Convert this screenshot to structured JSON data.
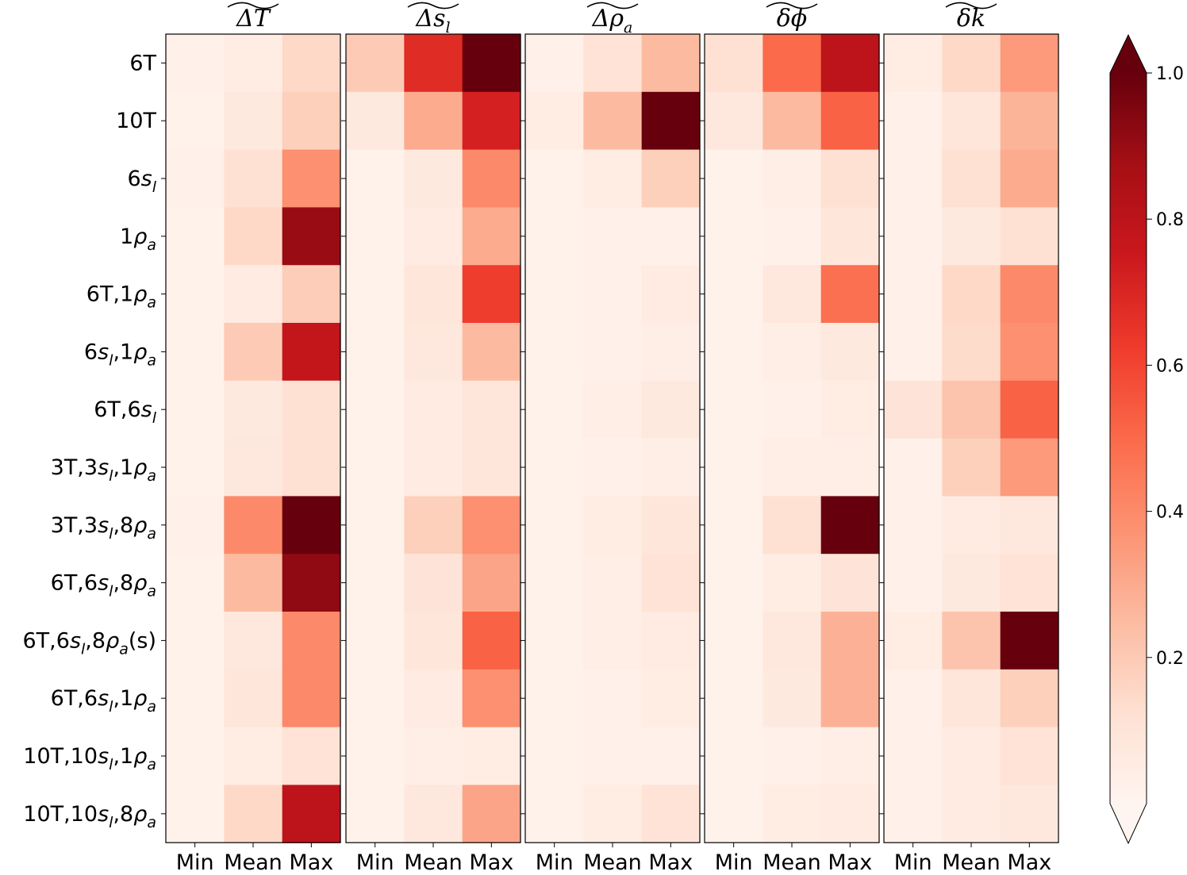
{
  "chart_data": {
    "type": "heatmap",
    "panels": [
      {
        "title": "ΔT",
        "columns": [
          "Min",
          "Mean",
          "Max"
        ],
        "values": [
          [
            0.03,
            0.05,
            0.15
          ],
          [
            0.02,
            0.07,
            0.18
          ],
          [
            0.03,
            0.12,
            0.38
          ],
          [
            0.02,
            0.15,
            0.9
          ],
          [
            0.02,
            0.06,
            0.19
          ],
          [
            0.02,
            0.2,
            0.78
          ],
          [
            0.02,
            0.07,
            0.12
          ],
          [
            0.02,
            0.08,
            0.12
          ],
          [
            0.03,
            0.4,
            1.0
          ],
          [
            0.02,
            0.25,
            0.92
          ],
          [
            0.02,
            0.08,
            0.4
          ],
          [
            0.02,
            0.09,
            0.4
          ],
          [
            0.02,
            0.05,
            0.11
          ],
          [
            0.02,
            0.15,
            0.8
          ]
        ]
      },
      {
        "title": "Δs_l",
        "columns": [
          "Min",
          "Mean",
          "Max"
        ],
        "values": [
          [
            0.2,
            0.68,
            1.0
          ],
          [
            0.07,
            0.3,
            0.72
          ],
          [
            0.02,
            0.07,
            0.4
          ],
          [
            0.02,
            0.06,
            0.3
          ],
          [
            0.02,
            0.09,
            0.62
          ],
          [
            0.02,
            0.08,
            0.25
          ],
          [
            0.02,
            0.06,
            0.09
          ],
          [
            0.02,
            0.06,
            0.09
          ],
          [
            0.02,
            0.18,
            0.38
          ],
          [
            0.02,
            0.1,
            0.32
          ],
          [
            0.02,
            0.09,
            0.52
          ],
          [
            0.02,
            0.06,
            0.38
          ],
          [
            0.02,
            0.04,
            0.05
          ],
          [
            0.02,
            0.08,
            0.32
          ]
        ]
      },
      {
        "title": "Δρ_a",
        "columns": [
          "Min",
          "Mean",
          "Max"
        ],
        "values": [
          [
            0.03,
            0.11,
            0.25
          ],
          [
            0.05,
            0.25,
            1.0
          ],
          [
            0.02,
            0.05,
            0.18
          ],
          [
            0.02,
            0.03,
            0.03
          ],
          [
            0.02,
            0.03,
            0.06
          ],
          [
            0.02,
            0.03,
            0.04
          ],
          [
            0.02,
            0.04,
            0.07
          ],
          [
            0.02,
            0.03,
            0.04
          ],
          [
            0.02,
            0.05,
            0.09
          ],
          [
            0.02,
            0.04,
            0.11
          ],
          [
            0.02,
            0.04,
            0.06
          ],
          [
            0.02,
            0.03,
            0.05
          ],
          [
            0.02,
            0.03,
            0.03
          ],
          [
            0.02,
            0.05,
            0.11
          ]
        ]
      },
      {
        "title": "δϕ",
        "columns": [
          "Min",
          "Mean",
          "Max"
        ],
        "values": [
          [
            0.12,
            0.5,
            0.8
          ],
          [
            0.08,
            0.25,
            0.52
          ],
          [
            0.02,
            0.04,
            0.12
          ],
          [
            0.02,
            0.03,
            0.09
          ],
          [
            0.02,
            0.08,
            0.48
          ],
          [
            0.02,
            0.04,
            0.07
          ],
          [
            0.02,
            0.03,
            0.05
          ],
          [
            0.02,
            0.04,
            0.04
          ],
          [
            0.02,
            0.12,
            1.0
          ],
          [
            0.02,
            0.05,
            0.1
          ],
          [
            0.02,
            0.08,
            0.28
          ],
          [
            0.02,
            0.07,
            0.28
          ],
          [
            0.02,
            0.03,
            0.04
          ],
          [
            0.02,
            0.05,
            0.06
          ]
        ]
      },
      {
        "title": "δk",
        "columns": [
          "Min",
          "Mean",
          "Max"
        ],
        "values": [
          [
            0.05,
            0.15,
            0.35
          ],
          [
            0.03,
            0.09,
            0.27
          ],
          [
            0.03,
            0.12,
            0.3
          ],
          [
            0.03,
            0.07,
            0.12
          ],
          [
            0.03,
            0.15,
            0.4
          ],
          [
            0.03,
            0.14,
            0.38
          ],
          [
            0.1,
            0.22,
            0.52
          ],
          [
            0.03,
            0.18,
            0.35
          ],
          [
            0.03,
            0.06,
            0.08
          ],
          [
            0.03,
            0.07,
            0.11
          ],
          [
            0.05,
            0.22,
            1.0
          ],
          [
            0.03,
            0.09,
            0.18
          ],
          [
            0.03,
            0.06,
            0.11
          ],
          [
            0.03,
            0.06,
            0.08
          ]
        ]
      }
    ],
    "row_labels": [
      "6T",
      "10T",
      "6s_l",
      "1ρ_a",
      "6T,1ρ_a",
      "6s_l,1ρ_a",
      "6T,6s_l",
      "3T,3s_l,1ρ_a",
      "3T,3s_l,8ρ_a",
      "6T,6s_l,8ρ_a",
      "6T,6s_l,8ρ_a(s)",
      "6T,6s_l,1ρ_a",
      "10T,10s_l,1ρ_a",
      "10T,10s_l,8ρ_a"
    ],
    "colorbar": {
      "colormap": "Reds",
      "range": [
        0.0,
        1.0
      ],
      "ticks": [
        "0.2",
        "0.4",
        "0.6",
        "0.8",
        "1.0"
      ],
      "extend": "both"
    }
  }
}
